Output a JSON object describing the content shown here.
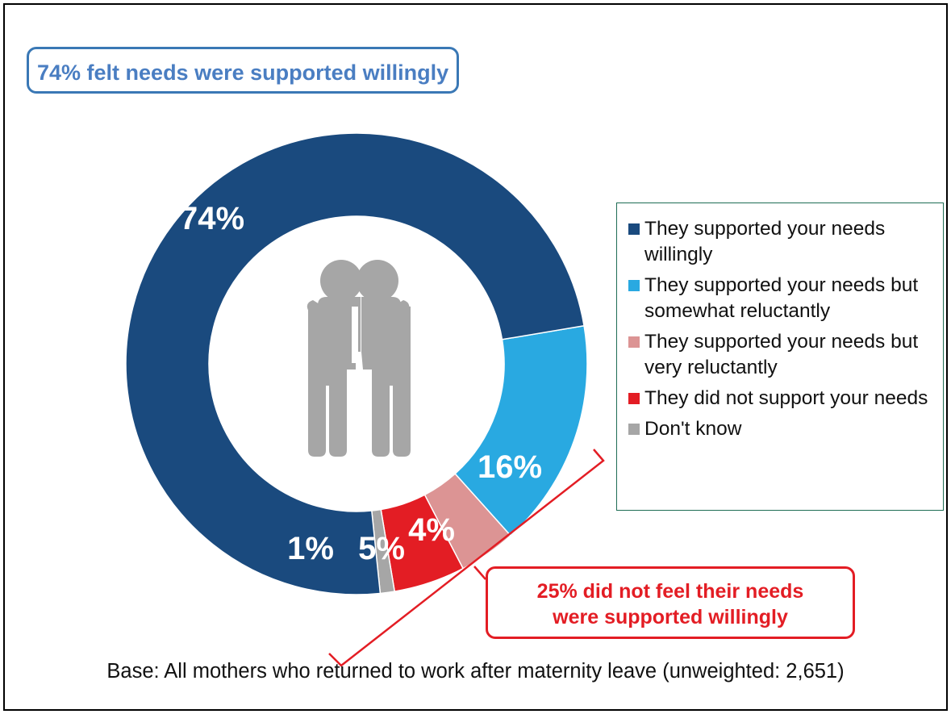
{
  "callouts": {
    "top": "74% felt needs were supported willingly",
    "bottom_line1": "25% did not feel their needs",
    "bottom_line2": "were supported willingly"
  },
  "footnote": "Base: All mothers who returned to work after maternity leave (unweighted: 2,651)",
  "icon": "two-people-embracing-icon",
  "chart_data": {
    "type": "pie",
    "donut": true,
    "legend_position": "right",
    "categories": [
      "They supported your needs willingly",
      "They supported your needs but somewhat reluctantly",
      "They supported your needs but very reluctantly",
      "They did not support your needs",
      "Don't know"
    ],
    "values": [
      74,
      16,
      4,
      5,
      1
    ],
    "data_labels": [
      "74%",
      "16%",
      "4%",
      "5%",
      "1%"
    ],
    "colors": [
      "#1a4a7e",
      "#29a9e1",
      "#dc9494",
      "#e31d24",
      "#a6a6a6"
    ]
  }
}
